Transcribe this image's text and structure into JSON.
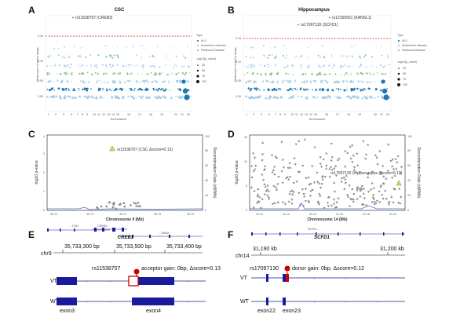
{
  "panel_labels": [
    "A",
    "B",
    "C",
    "D",
    "E",
    "F"
  ],
  "panel_a": {
    "title": "CSC",
    "annotation": "rs11538707 (CREB3)",
    "ylabel": "Delta score of splice usage",
    "xlabel": "chromosome",
    "yticks": [
      "0.15",
      "0.10",
      "0.05",
      "0.00"
    ],
    "xticks": [
      "1",
      "2",
      "3",
      "5",
      "7",
      "8",
      "9",
      "10",
      "11",
      "12",
      "13",
      "14",
      "15",
      "16",
      "17",
      "18",
      "19",
      "20",
      "21",
      "22"
    ]
  },
  "panel_b": {
    "title": "Hippocampus",
    "annotation_1": "rs17097130 (SCFD1)",
    "annotation_2": "rs12150551 (KANSL1)",
    "ylabel": "Delta score of splice usage",
    "xlabel": "chromosome",
    "yticks": [
      "0.15",
      "0.10",
      "0.05",
      "0.00"
    ],
    "xticks": [
      "1",
      "2",
      "3",
      "5",
      "7",
      "8",
      "9",
      "10",
      "11",
      "12",
      "13",
      "14",
      "15",
      "16",
      "17",
      "18",
      "19",
      "20",
      "21",
      "22"
    ]
  },
  "legend": {
    "type_title": "Type",
    "type_items": [
      "ALS",
      "Alzheimer's disease",
      "Parkinson Disease"
    ],
    "size_title": "-log10(p_value)",
    "size_items": [
      "25",
      "50",
      "75",
      "100"
    ]
  },
  "panel_c": {
    "annotation": "rs11538707 (CSC Δscore=0.13)",
    "ylabel": "-log10 p-value",
    "y2label": "Recombination Rate (cM/Mb)",
    "xlabel": "Chromosome 9 (Mb)",
    "yticks": [
      "0",
      "1",
      "2",
      "3",
      "4"
    ],
    "y2ticks": [
      "0",
      "20",
      "40",
      "60",
      "80",
      "100"
    ],
    "xticks": [
      "35.72",
      "35.73",
      "35.73",
      "35.73",
      "35.74"
    ],
    "genes": [
      "←TLN1",
      "CREB3→",
      "←GBA2"
    ]
  },
  "panel_d": {
    "annotation": "rs17097130 (Hippocampus Δscore=0.12)",
    "ylabel": "-log10 p-value",
    "y2label": "Recombination Rate (cM/Mb)",
    "xlabel": "Chromosome 14 (Mb)",
    "yticks": [
      "0",
      "5",
      "10",
      "15"
    ],
    "y2ticks": [
      "0",
      "20",
      "40",
      "60",
      "80",
      "100"
    ],
    "xticks": [
      "31.10",
      "31.12",
      "31.14",
      "31.16",
      "31.18",
      "31.20"
    ],
    "genes": [
      "SCFD1→"
    ]
  },
  "panel_e": {
    "gene_title": "CREB3",
    "chrom": "chr9",
    "coords": [
      "35,733,300 bp",
      "35,733,500 bp",
      "35,733,400 bp"
    ],
    "snp_label": "rs11538707",
    "event": "acceptor gain: 0bp, Δscore=0.13",
    "track_vt": "VT",
    "track_wt": "WT",
    "exons": [
      "exon3",
      "exon4"
    ]
  },
  "panel_f": {
    "gene_title": "SCFD1",
    "chrom": "chr14",
    "coords": [
      "31,190 kb",
      "31,200 kb"
    ],
    "snp_label": "rs17097130",
    "event": "donor gain: 0bp, Δscore=0.12",
    "track_vt": "VT",
    "track_wt": "WT",
    "exons": [
      "exon22",
      "exon23"
    ]
  },
  "colors": {
    "threshold": "#e31a1c",
    "als": "#1f78b4",
    "alz": "#a6cee3",
    "pd": "#7fc97f",
    "exon": "#1a1a9c",
    "snp": "#cc0000",
    "lead": "#dede3a",
    "gwas": "#888888"
  }
}
